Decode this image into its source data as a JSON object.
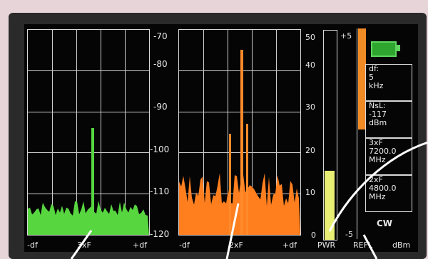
{
  "display": {
    "left_spectrum": {
      "x_labels": [
        "-df",
        "3xF",
        "+df"
      ]
    },
    "right_spectrum": {
      "x_labels": [
        "-df",
        "2xF",
        "+df"
      ]
    },
    "dbm_scale": [
      "-70",
      "-80",
      "-90",
      "-100",
      "-110",
      "-120"
    ],
    "pwr_scale": [
      "50",
      "40",
      "30",
      "20",
      "10",
      "0"
    ],
    "refl_scale": [
      "+5",
      "-5"
    ],
    "bar_labels": {
      "pwr": "PWR",
      "refl": "REFL",
      "unit": "dBm"
    },
    "pwr_level_percent": 33,
    "refl_level_percent": 48,
    "info": {
      "df_label": "df:",
      "df_value": "5",
      "df_unit": "kHz",
      "nsl_label": "NsL:",
      "nsl_value": "-117",
      "nsl_unit": "dBm",
      "h3_label": "3xF",
      "h3_value": "7200.0",
      "h3_unit": "MHz",
      "h2_label": "2xF",
      "h2_value": "4800.0",
      "h2_unit": "MHz",
      "mode": "CW"
    },
    "colors": {
      "left_trace": "#57d640",
      "right_trace": "#ff7f1f",
      "pwr_bar": "#e8ef74",
      "refl_bar": "#f08a24",
      "battery": "#2ea52e"
    }
  }
}
